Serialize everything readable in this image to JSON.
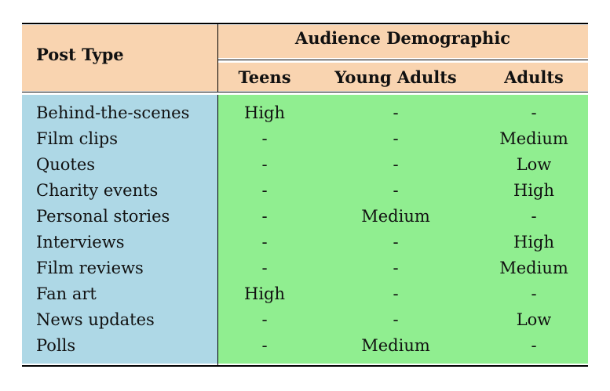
{
  "table": {
    "post_type_header": "Post Type",
    "audience_header": "Audience Demographic",
    "columns": [
      "Teens",
      "Young Adults",
      "Adults"
    ],
    "rows": [
      {
        "post_type": "Behind-the-scenes",
        "cells": [
          "High",
          "-",
          "-"
        ]
      },
      {
        "post_type": "Film clips",
        "cells": [
          "-",
          "-",
          "Medium"
        ]
      },
      {
        "post_type": "Quotes",
        "cells": [
          "-",
          "-",
          "Low"
        ]
      },
      {
        "post_type": "Charity events",
        "cells": [
          "-",
          "-",
          "High"
        ]
      },
      {
        "post_type": "Personal stories",
        "cells": [
          "-",
          "Medium",
          "-"
        ]
      },
      {
        "post_type": "Interviews",
        "cells": [
          "-",
          "-",
          "High"
        ]
      },
      {
        "post_type": "Film reviews",
        "cells": [
          "-",
          "-",
          "Medium"
        ]
      },
      {
        "post_type": "Fan art",
        "cells": [
          "High",
          "-",
          "-"
        ]
      },
      {
        "post_type": "News updates",
        "cells": [
          "-",
          "-",
          "Low"
        ]
      },
      {
        "post_type": "Polls",
        "cells": [
          "-",
          "Medium",
          "-"
        ]
      }
    ]
  },
  "colors": {
    "header_bg": "#f9d4b0",
    "post_type_bg": "#aed8e6",
    "data_bg": "#90ee90"
  }
}
